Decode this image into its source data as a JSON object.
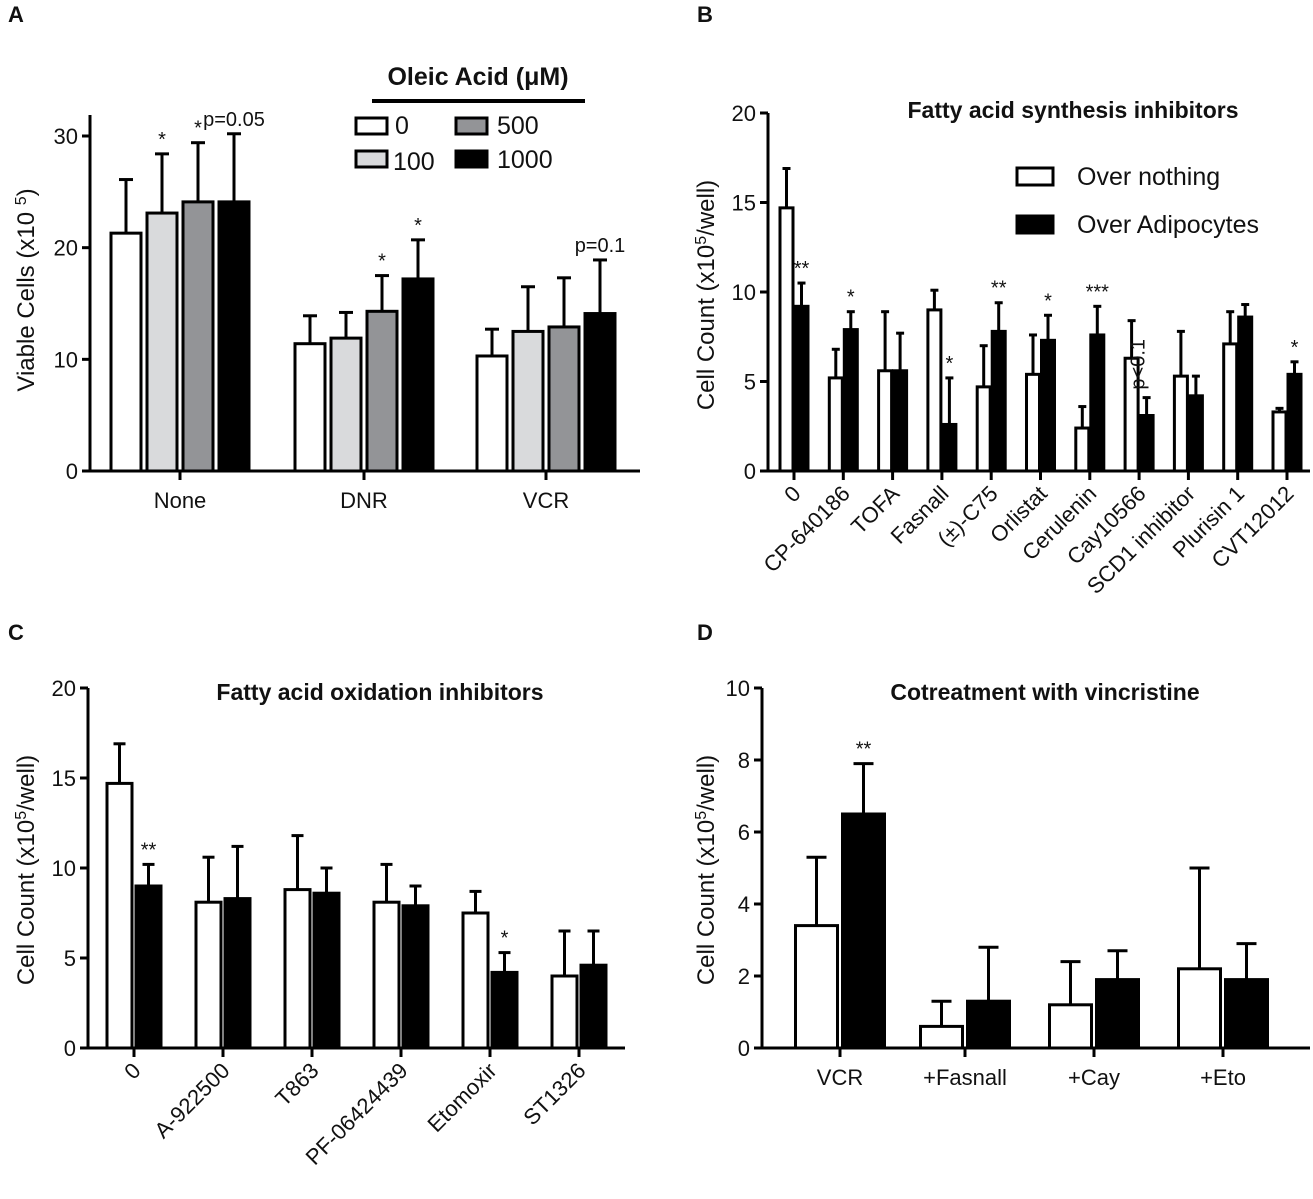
{
  "chart_data": [
    {
      "panel": "A",
      "type": "bar",
      "title": "",
      "ylabel": {
        "main": "Viable Cells  (x10 ",
        "sup": "5",
        "tail": ")"
      },
      "xlabel": "",
      "ylim": [
        0,
        30
      ],
      "yticks": [
        "0",
        "10",
        "20",
        "30"
      ],
      "categories": [
        "None",
        "DNR",
        "VCR"
      ],
      "legend": {
        "title": "Oleic Acid  (μM)",
        "placement": "top-right"
      },
      "series": [
        {
          "name": "0",
          "color": "#ffffff",
          "values": [
            21.3,
            11.4,
            10.3
          ],
          "error_upper": [
            26.1,
            13.9,
            12.7
          ]
        },
        {
          "name": "100",
          "color": "#d9dadc",
          "values": [
            23.1,
            11.9,
            12.5
          ],
          "error_upper": [
            28.4,
            14.2,
            16.5
          ]
        },
        {
          "name": "500",
          "color": "#939497",
          "values": [
            24.1,
            14.3,
            12.9
          ],
          "error_upper": [
            29.4,
            17.5,
            17.3
          ]
        },
        {
          "name": "1000",
          "color": "#000000",
          "values": [
            24.1,
            17.2,
            14.1
          ],
          "error_upper": [
            30.2,
            20.7,
            18.9
          ]
        }
      ],
      "annotations": [
        {
          "text": "*",
          "category": 0,
          "series": 1
        },
        {
          "text": "*",
          "category": 0,
          "series": 2
        },
        {
          "text": "p=0.05",
          "category": 0,
          "series": 3
        },
        {
          "text": "*",
          "category": 1,
          "series": 2
        },
        {
          "text": "*",
          "category": 1,
          "series": 3
        },
        {
          "text": "p=0.1",
          "category": 2,
          "series": 3
        }
      ]
    },
    {
      "panel": "B",
      "type": "bar",
      "title": "Fatty acid synthesis inhibitors",
      "ylabel": {
        "main": "Cell Count (x10",
        "sup": "5",
        "tail": "/well)"
      },
      "xlabel": "",
      "ylim": [
        0,
        20
      ],
      "yticks": [
        "0",
        "5",
        "10",
        "15",
        "20"
      ],
      "categories": [
        "0",
        "CP-640186",
        "TOFA",
        "Fasnall",
        "(±)-C75",
        "Orlistat",
        "Cerulenin",
        "Cay10566",
        "SCD1 inhibitor",
        "Plurisin 1",
        "CVT12012"
      ],
      "legend": {
        "title": "",
        "placement": "top-right"
      },
      "series": [
        {
          "name": "Over nothing",
          "color": "#ffffff",
          "values": [
            14.7,
            5.2,
            5.6,
            9.0,
            4.7,
            5.4,
            2.4,
            6.3,
            5.3,
            7.1,
            3.3
          ],
          "error_upper": [
            16.9,
            6.8,
            8.9,
            10.1,
            7.0,
            7.6,
            3.6,
            8.4,
            7.8,
            8.9,
            3.5
          ]
        },
        {
          "name": "Over Adipocytes",
          "color": "#000000",
          "values": [
            9.2,
            7.9,
            5.6,
            2.6,
            7.8,
            7.3,
            7.6,
            3.1,
            4.2,
            8.6,
            5.4
          ],
          "error_upper": [
            10.5,
            8.9,
            7.7,
            5.2,
            9.4,
            8.7,
            9.2,
            4.1,
            5.3,
            9.3,
            6.1
          ]
        }
      ],
      "annotations": [
        {
          "text": "**",
          "category": 0,
          "series": 1
        },
        {
          "text": "*",
          "category": 1,
          "series": 1
        },
        {
          "text": "*",
          "category": 3,
          "series": 1
        },
        {
          "text": "**",
          "category": 4,
          "series": 1
        },
        {
          "text": "*",
          "category": 5,
          "series": 1
        },
        {
          "text": "***",
          "category": 6,
          "series": 1
        },
        {
          "text": "p<0.1",
          "category": 7,
          "series": 1,
          "orientation": "vertical"
        },
        {
          "text": "*",
          "category": 10,
          "series": 1
        }
      ]
    },
    {
      "panel": "C",
      "type": "bar",
      "title": "Fatty acid oxidation inhibitors",
      "ylabel": {
        "main": "Cell Count (x10",
        "sup": "5",
        "tail": "/well)"
      },
      "xlabel": "",
      "ylim": [
        0,
        20
      ],
      "yticks": [
        "0",
        "5",
        "10",
        "15",
        "20"
      ],
      "categories": [
        "0",
        "A-922500",
        "T863",
        "PF-06424439",
        "Etomoxir",
        "ST1326"
      ],
      "series": [
        {
          "name": "Over nothing",
          "color": "#ffffff",
          "values": [
            14.7,
            8.1,
            8.8,
            8.1,
            7.5,
            4.0
          ],
          "error_upper": [
            16.9,
            10.6,
            11.8,
            10.2,
            8.7,
            6.5
          ]
        },
        {
          "name": "Over Adipocytes",
          "color": "#000000",
          "values": [
            9.0,
            8.3,
            8.6,
            7.9,
            4.2,
            4.6
          ],
          "error_upper": [
            10.2,
            11.2,
            10.0,
            9.0,
            5.3,
            6.5
          ]
        }
      ],
      "annotations": [
        {
          "text": "**",
          "category": 0,
          "series": 1
        },
        {
          "text": "*",
          "category": 4,
          "series": 1
        }
      ]
    },
    {
      "panel": "D",
      "type": "bar",
      "title": "Cotreatment with vincristine",
      "ylabel": {
        "main": "Cell Count (x10",
        "sup": "5",
        "tail": "/well)"
      },
      "xlabel": "",
      "ylim": [
        0,
        10
      ],
      "yticks": [
        "0",
        "2",
        "4",
        "6",
        "8",
        "10"
      ],
      "categories": [
        "VCR",
        "+Fasnall",
        "+Cay",
        "+Eto"
      ],
      "series": [
        {
          "name": "Over nothing",
          "color": "#ffffff",
          "values": [
            3.4,
            0.6,
            1.2,
            2.2
          ],
          "error_upper": [
            5.3,
            1.3,
            2.4,
            5.0
          ]
        },
        {
          "name": "Over Adipocytes",
          "color": "#000000",
          "values": [
            6.5,
            1.3,
            1.9,
            1.9
          ],
          "error_upper": [
            7.9,
            2.8,
            2.7,
            2.9
          ]
        }
      ],
      "annotations": [
        {
          "text": "**",
          "category": 0,
          "series": 1
        }
      ]
    }
  ]
}
